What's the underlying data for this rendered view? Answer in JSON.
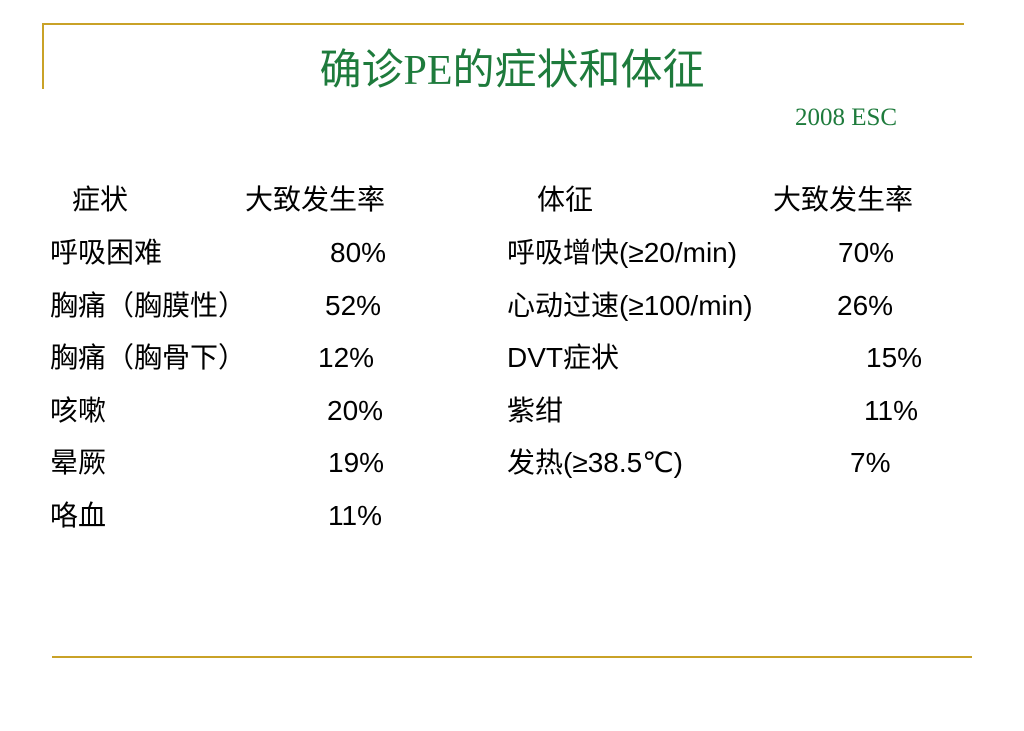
{
  "header": {
    "title": "确诊PE的症状和体征",
    "subtitle": "2008 ESC"
  },
  "symptoms": {
    "columns": [
      "症状",
      "大致发生率"
    ],
    "rows": [
      [
        "呼吸困难",
        "80%"
      ],
      [
        "胸痛（胸膜性）",
        "52%"
      ],
      [
        "胸痛（胸骨下）",
        "12%"
      ],
      [
        "咳嗽",
        "20%"
      ],
      [
        "晕厥",
        "19%"
      ],
      [
        "咯血",
        "11%"
      ]
    ]
  },
  "signs": {
    "columns": [
      "体征",
      "大致发生率"
    ],
    "rows": [
      [
        "呼吸增快(≥20/min)",
        "70%"
      ],
      [
        "心动过速(≥100/min)",
        "26%"
      ],
      [
        "DVT症状",
        "15%"
      ],
      [
        "紫绀",
        "11%"
      ],
      [
        "发热(≥38.5℃)",
        "7%"
      ]
    ]
  }
}
